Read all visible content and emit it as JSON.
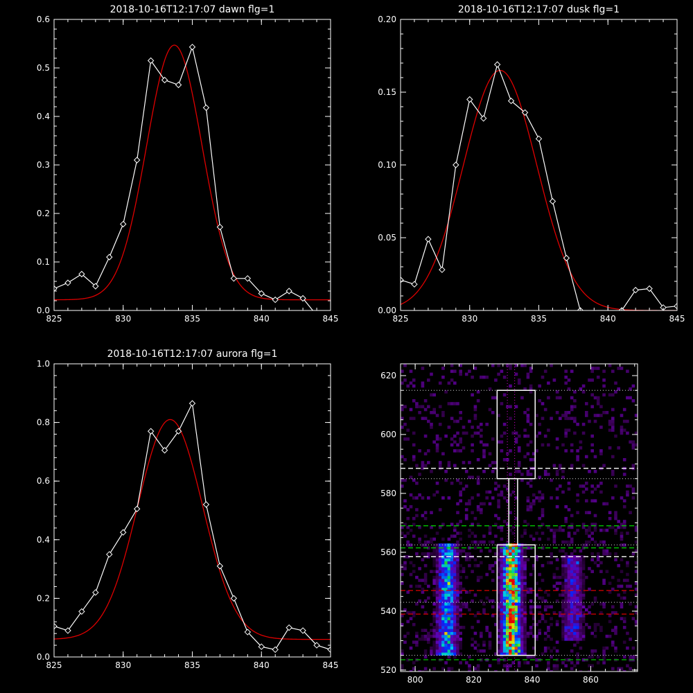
{
  "colors": {
    "background": "#000000",
    "axes": "#ffffff",
    "data_line": "#ffffff",
    "fit_line": "#e00000",
    "box": "#ffffff",
    "dotted_white": "#dcdcdc",
    "dashed_white": "#ffffff",
    "dashed_green": "#00c800",
    "dashed_red": "#dc0000",
    "dotted_magenta": "#e000e0"
  },
  "chart_data": [
    {
      "type": "line",
      "title": "2018-10-16T12:17:07 dawn flg=1",
      "xlim": [
        825,
        845
      ],
      "ylim": [
        0,
        0.6
      ],
      "xticks": [
        825,
        830,
        835,
        840,
        845
      ],
      "yticks": [
        0.0,
        0.1,
        0.2,
        0.3,
        0.4,
        0.5,
        0.6
      ],
      "ytick_labels": [
        "0.0",
        "0.1",
        "0.2",
        "0.3",
        "0.4",
        "0.5",
        "0.6"
      ],
      "series": [
        {
          "style": "white-line-diamonds",
          "x": [
            825,
            826,
            827,
            828,
            829,
            830,
            831,
            832,
            833,
            834,
            835,
            836,
            837,
            838,
            839,
            840,
            841,
            842,
            843,
            844,
            845
          ],
          "y": [
            0.045,
            0.057,
            0.075,
            0.05,
            0.11,
            0.178,
            0.31,
            0.515,
            0.475,
            0.465,
            0.543,
            0.418,
            0.172,
            0.066,
            0.066,
            0.035,
            0.022,
            0.04,
            0.025,
            -0.01,
            -0.04
          ]
        },
        {
          "style": "red-fit",
          "fit": {
            "amplitude": 0.525,
            "center": 833.7,
            "sigma": 2.0,
            "baseline": 0.022
          }
        }
      ]
    },
    {
      "type": "line",
      "title": "2018-10-16T12:17:07 dusk flg=1",
      "xlim": [
        825,
        845
      ],
      "ylim": [
        0,
        0.2
      ],
      "xticks": [
        825,
        830,
        835,
        840,
        845
      ],
      "yticks": [
        0.0,
        0.05,
        0.1,
        0.15,
        0.2
      ],
      "ytick_labels": [
        "0.00",
        "0.05",
        "0.10",
        "0.15",
        "0.20"
      ],
      "series": [
        {
          "style": "white-line-diamonds",
          "x": [
            825,
            826,
            827,
            828,
            829,
            830,
            831,
            832,
            833,
            834,
            835,
            836,
            837,
            838,
            839,
            840,
            841,
            842,
            843,
            844,
            845
          ],
          "y": [
            0.021,
            0.018,
            0.049,
            0.028,
            0.1,
            0.145,
            0.132,
            0.169,
            0.144,
            0.136,
            0.118,
            0.075,
            0.036,
            0.0,
            -0.002,
            -0.01,
            0.0,
            0.014,
            0.015,
            0.002,
            0.003
          ]
        },
        {
          "style": "red-fit",
          "fit": {
            "amplitude": 0.165,
            "center": 832.2,
            "sigma": 2.65,
            "baseline": 0.0
          }
        }
      ]
    },
    {
      "type": "line",
      "title": "2018-10-16T12:17:07 aurora flg=1",
      "xlim": [
        825,
        845
      ],
      "ylim": [
        0,
        1.0
      ],
      "xticks": [
        825,
        830,
        835,
        840,
        845
      ],
      "yticks": [
        0.0,
        0.2,
        0.4,
        0.6,
        0.8,
        1.0
      ],
      "ytick_labels": [
        "0.0",
        "0.2",
        "0.4",
        "0.6",
        "0.8",
        "1.0"
      ],
      "series": [
        {
          "style": "white-line-diamonds",
          "x": [
            825,
            826,
            827,
            828,
            829,
            830,
            831,
            832,
            833,
            834,
            835,
            836,
            837,
            838,
            839,
            840,
            841,
            842,
            843,
            844,
            845
          ],
          "y": [
            0.105,
            0.09,
            0.155,
            0.22,
            0.35,
            0.425,
            0.505,
            0.77,
            0.705,
            0.77,
            0.865,
            0.52,
            0.31,
            0.2,
            0.085,
            0.035,
            0.025,
            0.1,
            0.09,
            0.04,
            0.025
          ]
        },
        {
          "style": "red-fit",
          "fit": {
            "amplitude": 0.75,
            "center": 833.4,
            "sigma": 2.35,
            "baseline": 0.06
          }
        }
      ]
    },
    {
      "type": "heatmap",
      "title": "",
      "xlim": [
        795,
        876
      ],
      "ylim": [
        519.5,
        624
      ],
      "xticks": [
        800,
        820,
        840,
        860
      ],
      "yticks": [
        520,
        540,
        560,
        580,
        600,
        620
      ],
      "streaks": [
        {
          "x_center": 811,
          "y_range": [
            525,
            562
          ],
          "intensity": 0.6
        },
        {
          "x_center": 833,
          "y_range": [
            525,
            562
          ],
          "intensity": 1.0
        },
        {
          "x_center": 854,
          "y_range": [
            530,
            558
          ],
          "intensity": 0.35
        }
      ],
      "boxes": [
        {
          "x": [
            828,
            841
          ],
          "y": [
            525,
            562.5
          ]
        },
        {
          "x": [
            832,
            835
          ],
          "y": [
            562.5,
            585
          ]
        },
        {
          "x": [
            828,
            841
          ],
          "y": [
            585,
            615
          ]
        }
      ],
      "hlines": [
        {
          "y": 615,
          "style": "dotted",
          "color": "dotted_white"
        },
        {
          "y": 588.5,
          "style": "dashed",
          "color": "dashed_white"
        },
        {
          "y": 585,
          "style": "dotted",
          "color": "dotted_white"
        },
        {
          "y": 569,
          "style": "dashed",
          "color": "dashed_green"
        },
        {
          "y": 562.5,
          "style": "dotted",
          "color": "dotted_white"
        },
        {
          "y": 561.5,
          "style": "dashed",
          "color": "dashed_green"
        },
        {
          "y": 558.5,
          "style": "dashed",
          "color": "dashed_white"
        },
        {
          "y": 547,
          "style": "dashed",
          "color": "dashed_red"
        },
        {
          "y": 543,
          "style": "dotted",
          "color": "dotted_white"
        },
        {
          "y": 539,
          "style": "dashed",
          "color": "dashed_red"
        },
        {
          "y": 525,
          "style": "dotted",
          "color": "dotted_white"
        },
        {
          "y": 523.5,
          "style": "dashed",
          "color": "dashed_green"
        }
      ],
      "vlines": [
        {
          "x": 831.5,
          "style": "dotted",
          "color": "dotted_magenta"
        },
        {
          "x": 834,
          "style": "dotted",
          "color": "dotted_magenta"
        }
      ]
    }
  ]
}
